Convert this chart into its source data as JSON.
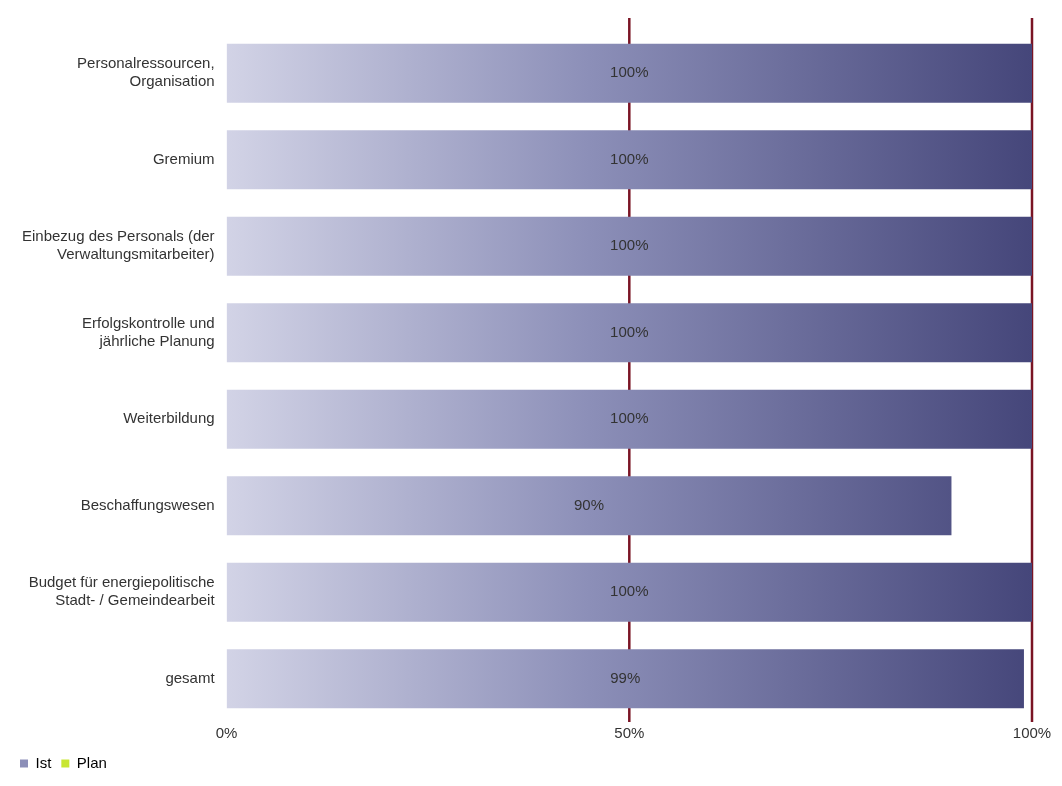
{
  "chart_data": {
    "type": "bar",
    "orientation": "horizontal",
    "categories": [
      "Personalressourcen, Organisation",
      "Gremium",
      "Einbezug des Personals (der Verwaltungsmitarbeiter)",
      "Erfolgskontrolle und jährliche Planung",
      "Weiterbildung",
      "Beschaffungswesen",
      "Budget für energiepolitische Stadt- / Gemeindearbeit",
      "gesamt"
    ],
    "series": [
      {
        "name": "Ist",
        "color": "#8c8fb8",
        "values": [
          100,
          100,
          100,
          100,
          100,
          90,
          100,
          99
        ],
        "value_labels": [
          "100%",
          "100%",
          "100%",
          "100%",
          "100%",
          "90%",
          "100%",
          "99%"
        ]
      },
      {
        "name": "Plan",
        "color": "#c8e632",
        "values": [
          null,
          null,
          null,
          null,
          null,
          null,
          null,
          null
        ]
      }
    ],
    "xlim": [
      0,
      100
    ],
    "xticks": [
      {
        "value": 0,
        "label": "0%"
      },
      {
        "value": 50,
        "label": "50%"
      },
      {
        "value": 100,
        "label": "100%"
      }
    ],
    "ref_lines": [
      {
        "axis": "x",
        "value": 50,
        "color": "#7a1424"
      },
      {
        "axis": "x",
        "value": 100,
        "color": "#7a1424"
      }
    ],
    "grid": false,
    "legend": "bottom left"
  }
}
